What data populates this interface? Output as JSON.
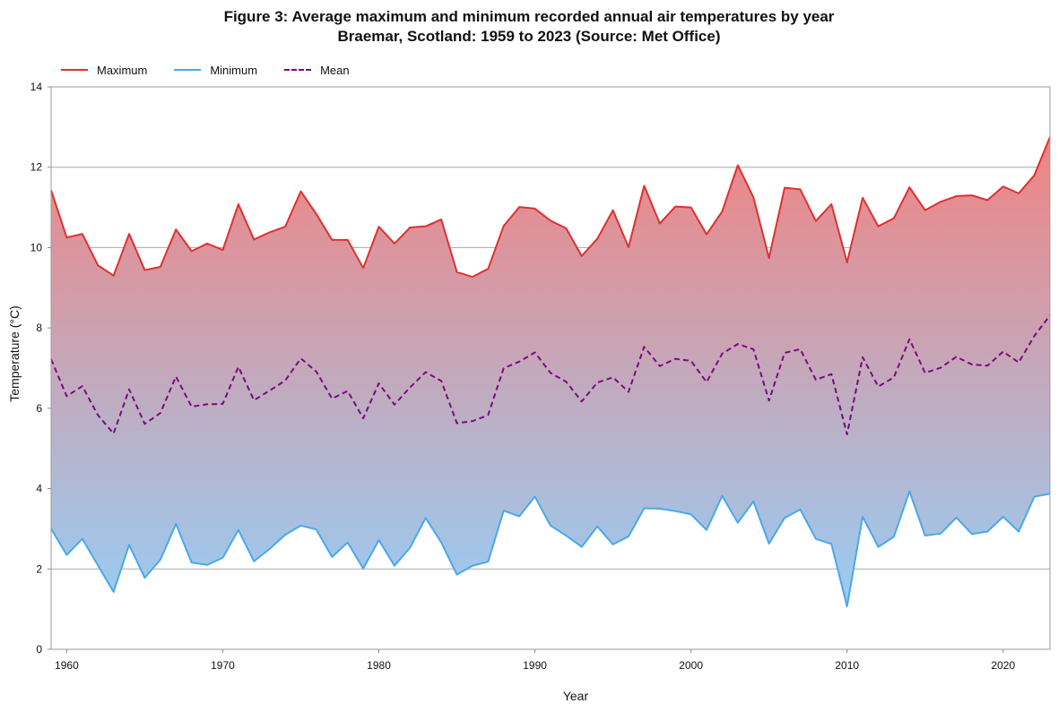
{
  "chart_data": {
    "type": "line",
    "title_line1": "Figure 3: Average maximum and minimum recorded annual air temperatures by year",
    "title_line2": "Braemar, Scotland: 1959 to 2023 (Source: Met Office)",
    "xlabel": "Year",
    "ylabel": "Temperature (°C)",
    "xlim": [
      1959,
      2023
    ],
    "ylim": [
      0,
      14
    ],
    "xticks": [
      1960,
      1970,
      1980,
      1990,
      2000,
      2010,
      2020
    ],
    "yticks": [
      0,
      2,
      4,
      6,
      8,
      10,
      12,
      14
    ],
    "grid": "horizontal",
    "legend_position": "top-left",
    "x": [
      1959,
      1960,
      1961,
      1962,
      1963,
      1964,
      1965,
      1966,
      1967,
      1968,
      1969,
      1970,
      1971,
      1972,
      1973,
      1974,
      1975,
      1976,
      1977,
      1978,
      1979,
      1980,
      1981,
      1982,
      1983,
      1984,
      1985,
      1986,
      1987,
      1988,
      1989,
      1990,
      1991,
      1992,
      1993,
      1994,
      1995,
      1996,
      1997,
      1998,
      1999,
      2000,
      2001,
      2002,
      2003,
      2004,
      2005,
      2006,
      2007,
      2008,
      2009,
      2010,
      2011,
      2012,
      2013,
      2014,
      2015,
      2016,
      2017,
      2018,
      2019,
      2020,
      2021,
      2022,
      2023
    ],
    "series": [
      {
        "name": "Maximum",
        "color": "#e03030",
        "dash": "solid",
        "values": [
          11.43,
          10.25,
          10.34,
          9.56,
          9.3,
          10.34,
          9.44,
          9.52,
          10.45,
          9.91,
          10.1,
          9.94,
          11.08,
          10.2,
          10.38,
          10.52,
          11.4,
          10.83,
          10.19,
          10.19,
          9.49,
          10.52,
          10.1,
          10.5,
          10.53,
          10.7,
          9.39,
          9.27,
          9.47,
          10.54,
          11.01,
          10.97,
          10.67,
          10.48,
          9.79,
          10.22,
          10.93,
          10.01,
          11.54,
          10.6,
          11.02,
          11.0,
          10.33,
          10.9,
          12.05,
          11.25,
          9.74,
          11.49,
          11.45,
          10.66,
          11.08,
          9.63,
          11.24,
          10.53,
          10.73,
          11.5,
          10.93,
          11.14,
          11.28,
          11.3,
          11.18,
          11.52,
          11.35,
          11.8,
          12.75
        ]
      },
      {
        "name": "Minimum",
        "color": "#4aa8e8",
        "dash": "solid",
        "values": [
          3.0,
          2.35,
          2.75,
          2.09,
          1.43,
          2.6,
          1.78,
          2.23,
          3.12,
          2.16,
          2.1,
          2.28,
          2.97,
          2.19,
          2.5,
          2.85,
          3.08,
          2.98,
          2.3,
          2.66,
          2.01,
          2.72,
          2.08,
          2.53,
          3.27,
          2.66,
          1.86,
          2.08,
          2.18,
          3.45,
          3.31,
          3.8,
          3.08,
          2.83,
          2.55,
          3.06,
          2.61,
          2.81,
          3.51,
          3.5,
          3.44,
          3.36,
          2.97,
          3.82,
          3.15,
          3.68,
          2.63,
          3.27,
          3.48,
          2.75,
          2.62,
          1.07,
          3.3,
          2.55,
          2.8,
          3.93,
          2.83,
          2.88,
          3.28,
          2.87,
          2.93,
          3.3,
          2.93,
          3.8,
          3.87
        ]
      },
      {
        "name": "Mean",
        "color": "#7a0a80",
        "dash": "dashed",
        "values": [
          7.22,
          6.3,
          6.55,
          5.83,
          5.37,
          6.47,
          5.61,
          5.88,
          6.79,
          6.04,
          6.1,
          6.11,
          7.03,
          6.2,
          6.44,
          6.69,
          7.24,
          6.91,
          6.24,
          6.43,
          5.75,
          6.62,
          6.09,
          6.52,
          6.9,
          6.68,
          5.63,
          5.68,
          5.83,
          7.0,
          7.16,
          7.39,
          6.88,
          6.66,
          6.17,
          6.64,
          6.77,
          6.41,
          7.53,
          7.05,
          7.23,
          7.18,
          6.65,
          7.36,
          7.6,
          7.47,
          6.19,
          7.38,
          7.47,
          6.71,
          6.85,
          5.35,
          7.27,
          6.54,
          6.77,
          7.72,
          6.88,
          7.01,
          7.28,
          7.09,
          7.06,
          7.41,
          7.14,
          7.8,
          8.31
        ]
      }
    ],
    "fill": {
      "top_color": "#ee8585",
      "bottom_color": "#9ccaef"
    }
  }
}
